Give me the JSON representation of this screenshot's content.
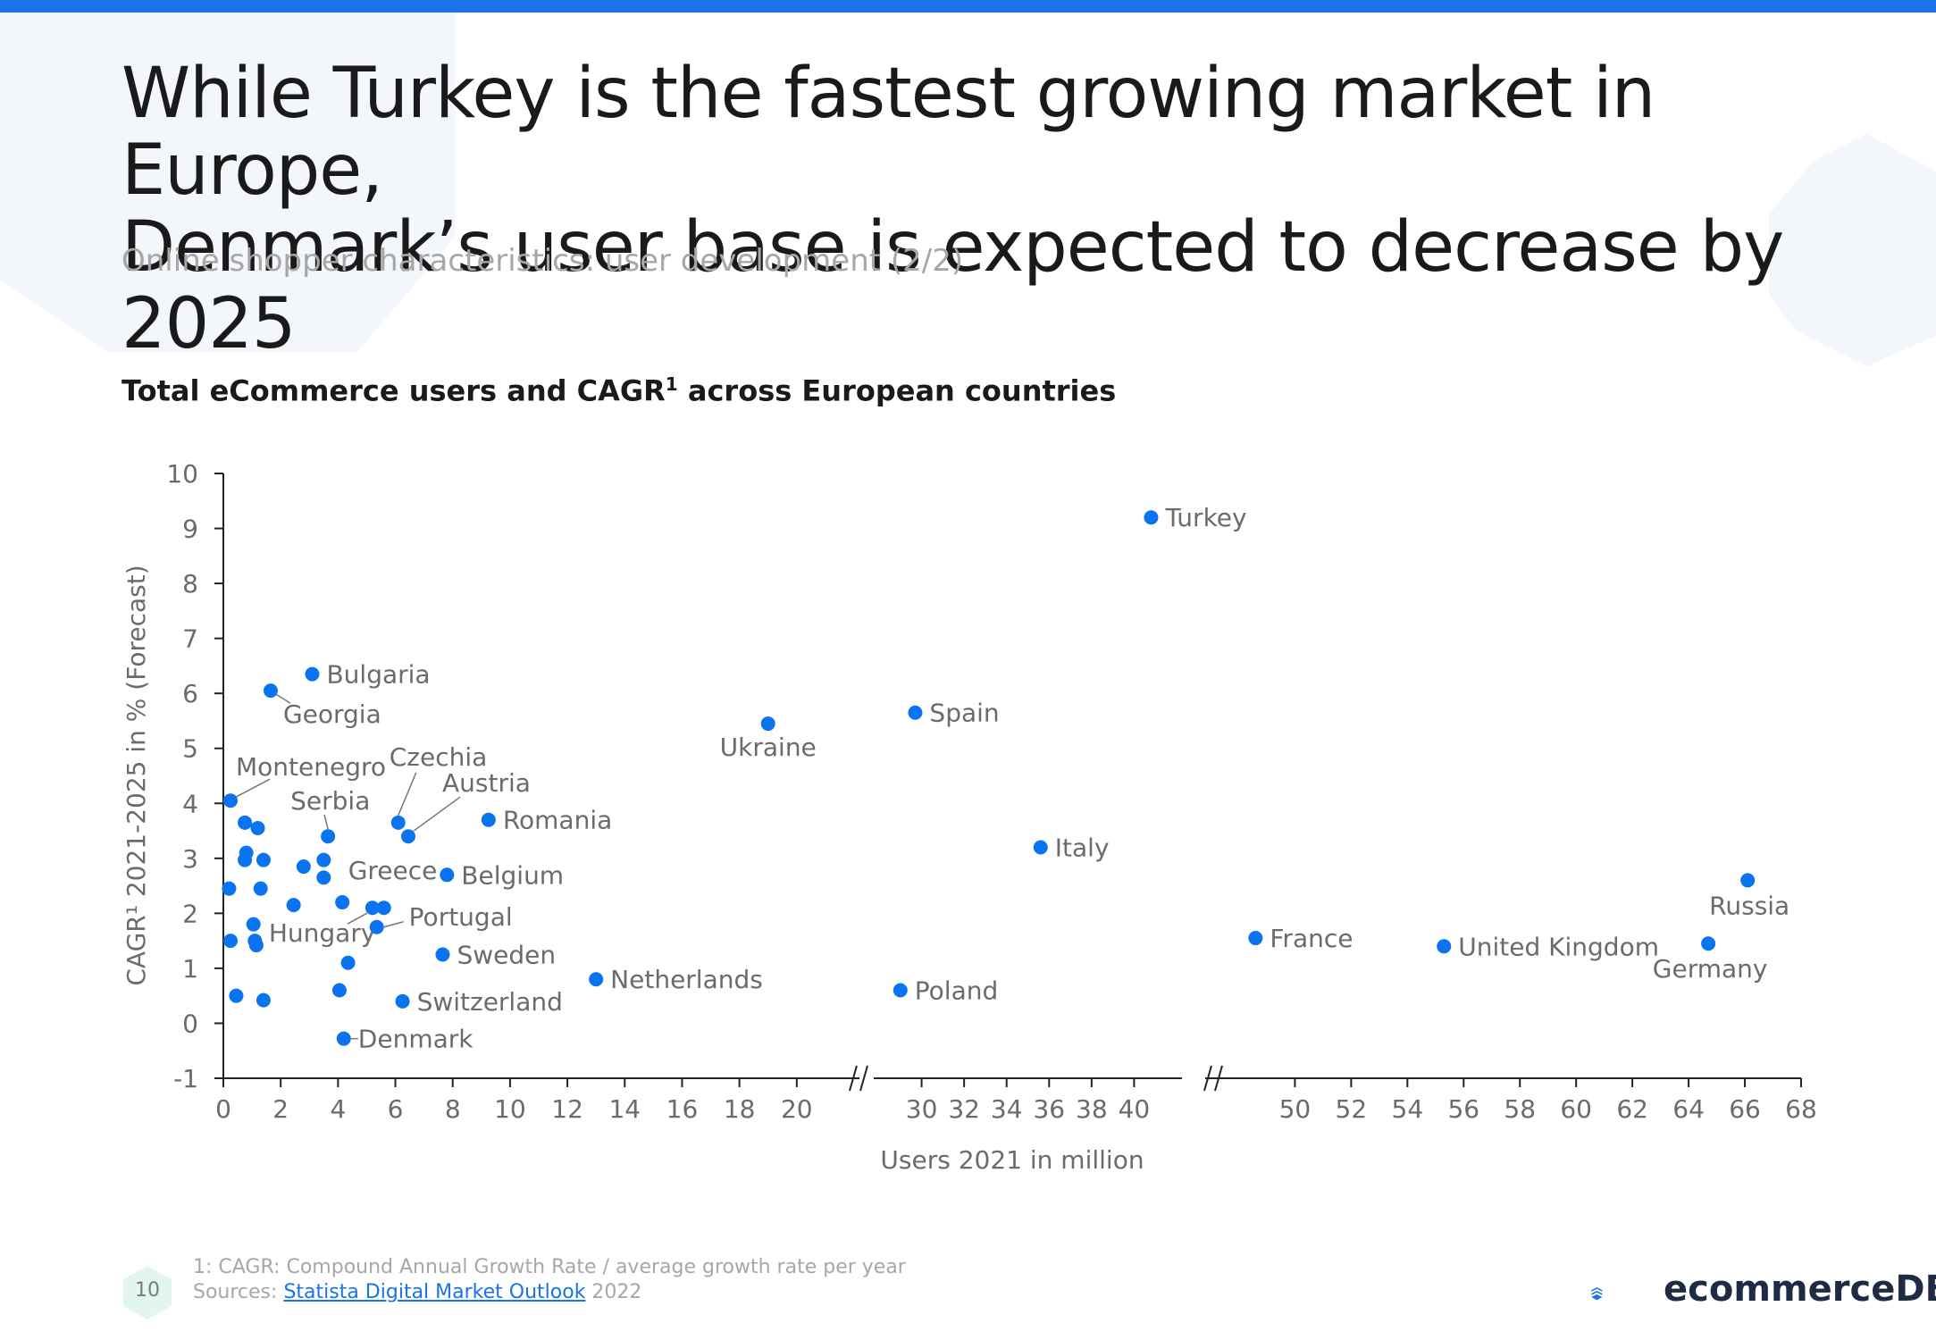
{
  "header": {
    "title_line1": "While Turkey is the fastest growing market in Europe,",
    "title_line2": "Denmark’s user base is expected to decrease by 2025",
    "subtitle": "Online shopper characteristics: user development (2/2)"
  },
  "chart_heading": {
    "text": "Total eCommerce users and CAGR",
    "sup": "1",
    "text_after": " across European countries"
  },
  "footer": {
    "note": "1: CAGR: Compound Annual Growth Rate / average growth rate per year",
    "sources_label": "Sources: ",
    "source_link": "Statista Digital Market Outlook",
    "source_year": " 2022",
    "page_number": "10",
    "logo_text": "ecommerceDB"
  },
  "colors": {
    "accent": "#1a73e8",
    "point": "#0a74f0",
    "text": "#1a1a1a",
    "muted": "#a7a7a7",
    "axis_text": "#6b6b6b"
  },
  "chart_data": {
    "type": "scatter",
    "xlabel": "Users 2021 in million",
    "ylabel": "CAGR¹ 2021-2025 in % (Forecast)",
    "ylim": [
      -1,
      10
    ],
    "yticks": [
      -1,
      0,
      1,
      2,
      3,
      4,
      5,
      6,
      7,
      8,
      9,
      10
    ],
    "x_axis_broken": true,
    "x_segments": [
      {
        "range": [
          0,
          22
        ],
        "ticks": [
          0,
          2,
          4,
          6,
          8,
          10,
          12,
          14,
          16,
          18,
          20
        ]
      },
      {
        "range": [
          28,
          42
        ],
        "ticks": [
          30,
          32,
          34,
          36,
          38,
          40
        ]
      },
      {
        "range": [
          47,
          68
        ],
        "ticks": [
          50,
          52,
          54,
          56,
          58,
          60,
          62,
          64,
          66,
          68
        ]
      }
    ],
    "points": [
      {
        "label": "Turkey",
        "x": 40.8,
        "y": 9.2
      },
      {
        "label": "Bulgaria",
        "x": 3.1,
        "y": 6.35
      },
      {
        "label": "Georgia",
        "x": 1.65,
        "y": 6.05
      },
      {
        "label": "Ukraine",
        "x": 19.0,
        "y": 5.45
      },
      {
        "label": "Spain",
        "x": 29.7,
        "y": 5.65
      },
      {
        "label": "Montenegro",
        "x": 0.25,
        "y": 4.05
      },
      {
        "label": "Czechia",
        "x": 6.1,
        "y": 3.65
      },
      {
        "label": "Austria",
        "x": 6.45,
        "y": 3.4
      },
      {
        "label": "Romania",
        "x": 9.25,
        "y": 3.7
      },
      {
        "label": "Serbia",
        "x": 3.65,
        "y": 3.4
      },
      {
        "label": "Italy",
        "x": 35.6,
        "y": 3.2
      },
      {
        "label": "Russia",
        "x": 66.1,
        "y": 2.6
      },
      {
        "label": "Belgium",
        "x": 7.8,
        "y": 2.7
      },
      {
        "label": "Greece",
        "x": 5.6,
        "y": 2.1
      },
      {
        "label": "Hungary",
        "x": 5.2,
        "y": 2.1
      },
      {
        "label": "Portugal",
        "x": 5.35,
        "y": 1.75
      },
      {
        "label": "Sweden",
        "x": 7.65,
        "y": 1.25
      },
      {
        "label": "France",
        "x": 48.6,
        "y": 1.55
      },
      {
        "label": "United Kingdom",
        "x": 55.3,
        "y": 1.4
      },
      {
        "label": "Germany",
        "x": 64.7,
        "y": 1.45
      },
      {
        "label": "Netherlands",
        "x": 13.0,
        "y": 0.8
      },
      {
        "label": "Poland",
        "x": 29.0,
        "y": 0.6
      },
      {
        "label": "Switzerland",
        "x": 6.25,
        "y": 0.4
      },
      {
        "label": "Denmark",
        "x": 4.2,
        "y": -0.28
      },
      {
        "label": "",
        "x": 0.75,
        "y": 3.65
      },
      {
        "label": "",
        "x": 1.2,
        "y": 3.55
      },
      {
        "label": "",
        "x": 0.8,
        "y": 3.1
      },
      {
        "label": "",
        "x": 0.75,
        "y": 2.97
      },
      {
        "label": "",
        "x": 1.4,
        "y": 2.97
      },
      {
        "label": "",
        "x": 2.8,
        "y": 2.85
      },
      {
        "label": "",
        "x": 3.5,
        "y": 2.97
      },
      {
        "label": "",
        "x": 3.5,
        "y": 2.65
      },
      {
        "label": "",
        "x": 0.2,
        "y": 2.45
      },
      {
        "label": "",
        "x": 1.3,
        "y": 2.45
      },
      {
        "label": "",
        "x": 4.15,
        "y": 2.2
      },
      {
        "label": "",
        "x": 2.45,
        "y": 2.15
      },
      {
        "label": "",
        "x": 1.05,
        "y": 1.8
      },
      {
        "label": "",
        "x": 1.1,
        "y": 1.5
      },
      {
        "label": "",
        "x": 1.15,
        "y": 1.42
      },
      {
        "label": "",
        "x": 0.25,
        "y": 1.5
      },
      {
        "label": "",
        "x": 4.35,
        "y": 1.1
      },
      {
        "label": "",
        "x": 4.05,
        "y": 0.6
      },
      {
        "label": "",
        "x": 0.45,
        "y": 0.5
      },
      {
        "label": "",
        "x": 1.4,
        "y": 0.42
      }
    ]
  }
}
